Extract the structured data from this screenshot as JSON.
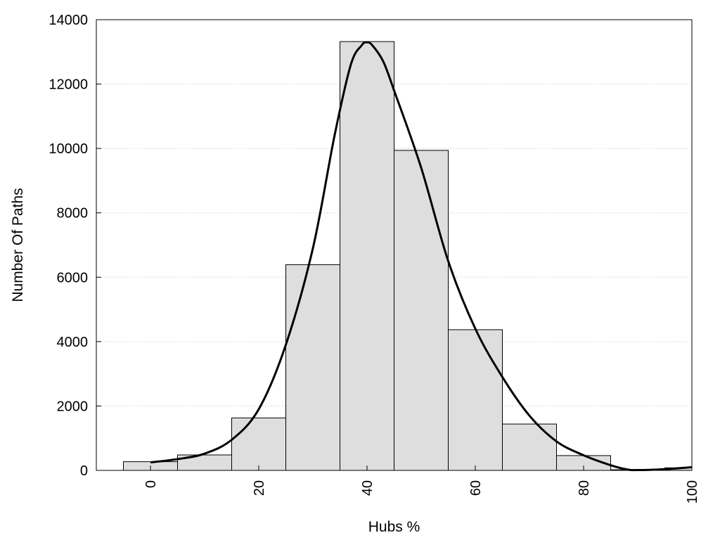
{
  "chart_data": {
    "type": "bar",
    "title": "",
    "xlabel": "Hubs %",
    "ylabel": "Number Of Paths",
    "xlim": [
      -10,
      100
    ],
    "ylim": [
      0,
      14000
    ],
    "x_ticks": [
      0,
      20,
      40,
      60,
      80,
      100
    ],
    "y_ticks": [
      0,
      2000,
      4000,
      6000,
      8000,
      10000,
      12000,
      14000
    ],
    "grid": "horizontal dotted",
    "legend": "none",
    "colors": {
      "bar_fill": "#dedede",
      "bar_stroke": "#000000",
      "curve": "#000000",
      "grid": "#bbbbbb"
    },
    "bars": {
      "bin_centers": [
        0,
        10,
        20,
        30,
        40,
        50,
        60,
        70,
        80,
        90,
        100
      ],
      "bin_width": 10,
      "values": [
        270,
        480,
        1630,
        6390,
        13320,
        9940,
        4370,
        1440,
        460,
        20,
        80
      ]
    },
    "density_curve": {
      "x": [
        0,
        5,
        10,
        15,
        20,
        25,
        30,
        34,
        37,
        39,
        40,
        41,
        43,
        45,
        50,
        55,
        60,
        65,
        70,
        75,
        80,
        85,
        88,
        90,
        95,
        100
      ],
      "y": [
        250,
        350,
        520,
        950,
        1900,
        3900,
        6900,
        10400,
        12600,
        13200,
        13300,
        13200,
        12700,
        11800,
        9400,
        6500,
        4400,
        2900,
        1700,
        900,
        470,
        160,
        30,
        10,
        40,
        100
      ]
    }
  }
}
